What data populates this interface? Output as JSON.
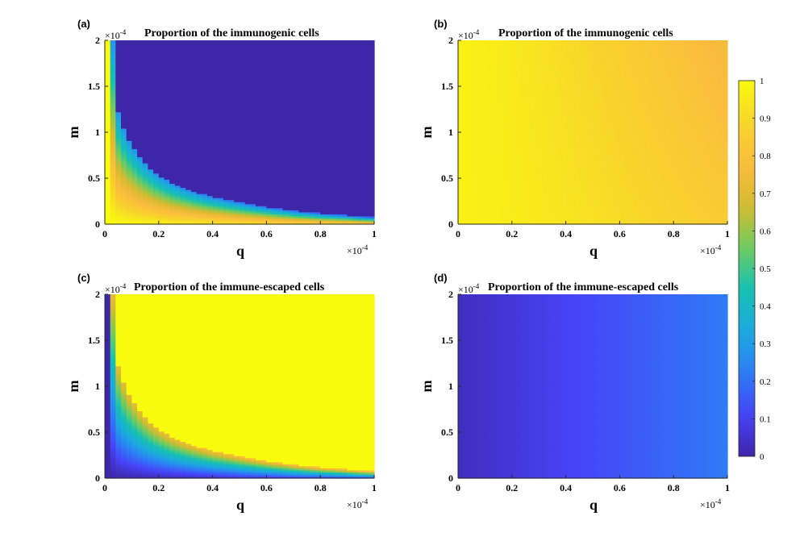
{
  "colormap": [
    "#3e26a8",
    "#4743f8",
    "#2d7df6",
    "#1caadf",
    "#15c0b3",
    "#6ecc60",
    "#d6bb2e",
    "#fbbc3e",
    "#f8d42b",
    "#f9fb0e"
  ],
  "chart_data": [
    {
      "type": "heatmap",
      "panel": "(a)",
      "title": "Proportion of the immunogenic cells",
      "xlabel": "q",
      "ylabel": "m",
      "xlim": [
        0,
        1
      ],
      "ylim": [
        0,
        2
      ],
      "x_multiplier": "×10",
      "x_multiplier_exp": "-4",
      "y_multiplier": "×10",
      "y_multiplier_exp": "-4",
      "xticks": [
        "0",
        "0.2",
        "0.4",
        "0.6",
        "0.8",
        "1"
      ],
      "yticks": [
        "0",
        "0.5",
        "1",
        "1.5",
        "2"
      ],
      "pattern": "immunogenic_threshold",
      "boundary_x": [
        0.01,
        0.03,
        0.05,
        0.07,
        0.09,
        0.11,
        0.13,
        0.15,
        0.17,
        0.19,
        0.21,
        0.25,
        0.3,
        0.35,
        0.4,
        0.45,
        0.5,
        0.6,
        0.7,
        0.8,
        0.9,
        0.99
      ],
      "boundary_m": [
        2.0,
        2.0,
        1.22,
        1.05,
        0.92,
        0.82,
        0.74,
        0.67,
        0.61,
        0.56,
        0.52,
        0.45,
        0.39,
        0.34,
        0.3,
        0.27,
        0.24,
        0.19,
        0.15,
        0.12,
        0.1,
        0.08
      ],
      "value_above_boundary": 0.0,
      "value_below_boundary_near_zero": 1.0
    },
    {
      "type": "heatmap",
      "panel": "(b)",
      "title": "Proportion of the immunogenic cells",
      "xlabel": "q",
      "ylabel": "m",
      "xlim": [
        0,
        1
      ],
      "ylim": [
        0,
        2
      ],
      "x_multiplier": "×10",
      "x_multiplier_exp": "-4",
      "y_multiplier": "×10",
      "y_multiplier_exp": "-4",
      "xticks": [
        "0",
        "0.2",
        "0.4",
        "0.6",
        "0.8",
        "1"
      ],
      "yticks": [
        "0",
        "0.5",
        "1",
        "1.5",
        "2"
      ],
      "pattern": "smooth_decline",
      "value_at_q0": 0.97,
      "value_at_q1_m0": 0.85,
      "value_at_q1_m2": 0.75
    },
    {
      "type": "heatmap",
      "panel": "(c)",
      "title": "Proportion of the immune-escaped cells",
      "xlabel": "q",
      "ylabel": "m",
      "xlim": [
        0,
        1
      ],
      "ylim": [
        0,
        2
      ],
      "x_multiplier": "×10",
      "x_multiplier_exp": "-4",
      "y_multiplier": "×10",
      "y_multiplier_exp": "-4",
      "xticks": [
        "0",
        "0.2",
        "0.4",
        "0.6",
        "0.8",
        "1"
      ],
      "yticks": [
        "0",
        "0.5",
        "1",
        "1.5",
        "2"
      ],
      "pattern": "escaped_threshold",
      "boundary_x": [
        0.01,
        0.03,
        0.05,
        0.07,
        0.09,
        0.11,
        0.13,
        0.15,
        0.17,
        0.19,
        0.21,
        0.25,
        0.3,
        0.35,
        0.4,
        0.45,
        0.5,
        0.6,
        0.7,
        0.8,
        0.9,
        0.99
      ],
      "boundary_m": [
        2.0,
        2.0,
        1.22,
        1.05,
        0.92,
        0.82,
        0.74,
        0.67,
        0.61,
        0.56,
        0.52,
        0.45,
        0.39,
        0.34,
        0.3,
        0.27,
        0.24,
        0.19,
        0.15,
        0.12,
        0.1,
        0.08
      ],
      "value_above_boundary": 1.0,
      "value_below_boundary_near_zero": 0.0
    },
    {
      "type": "heatmap",
      "panel": "(d)",
      "title": "Proportion of the immune-escaped cells",
      "xlabel": "q",
      "ylabel": "m",
      "xlim": [
        0,
        1
      ],
      "ylim": [
        0,
        2
      ],
      "x_multiplier": "×10",
      "x_multiplier_exp": "-4",
      "y_multiplier": "×10",
      "y_multiplier_exp": "-4",
      "xticks": [
        "0",
        "0.2",
        "0.4",
        "0.6",
        "0.8",
        "1"
      ],
      "yticks": [
        "0",
        "0.5",
        "1",
        "1.5",
        "2"
      ],
      "pattern": "smooth_rise",
      "value_at_q0": 0.03,
      "value_at_q1": 0.22
    }
  ],
  "colorbar": {
    "ticks": [
      "0",
      "0.1",
      "0.2",
      "0.3",
      "0.4",
      "0.5",
      "0.6",
      "0.7",
      "0.8",
      "0.9",
      "1"
    ],
    "range": [
      0,
      1
    ]
  }
}
